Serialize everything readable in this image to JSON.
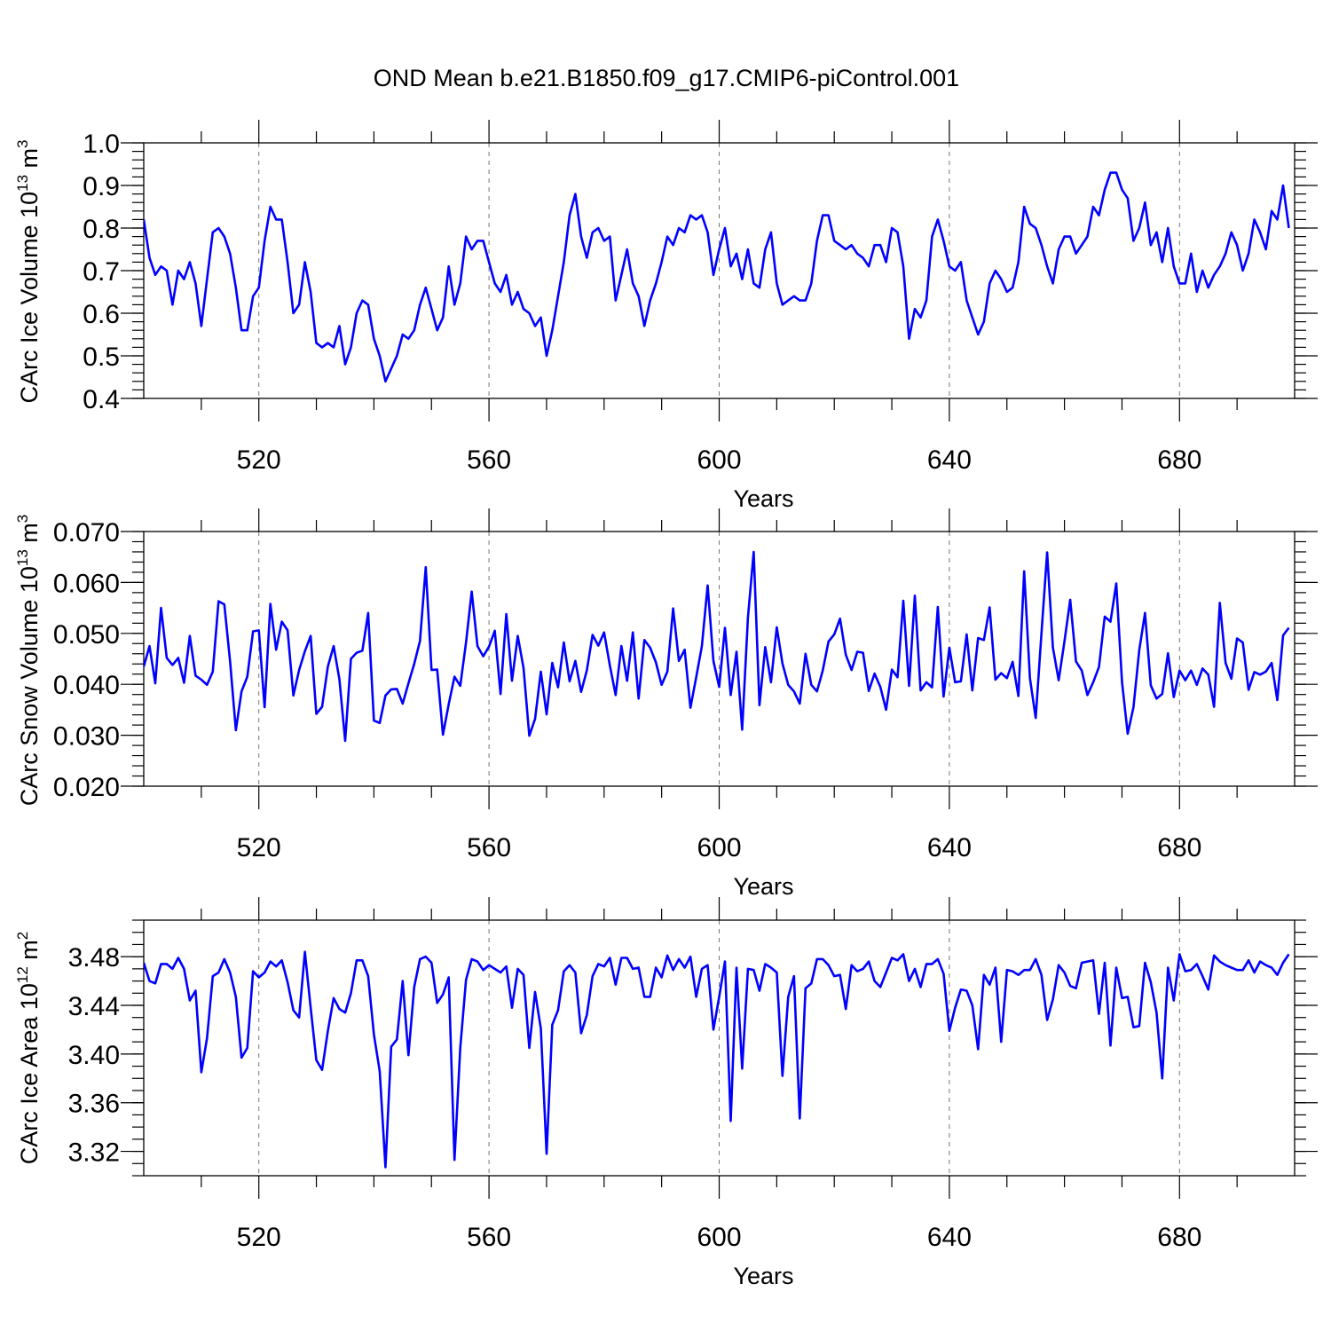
{
  "title": "OND Mean b.e21.B1850.f09_g17.CMIP6-piControl.001",
  "colors": {
    "series": "#0000ff",
    "grid": "#777777",
    "axis": "#000000"
  },
  "chart_data": [
    {
      "type": "line",
      "xlabel": "Years",
      "ylabel": {
        "main": "CArc Ice Volume 10",
        "exp": "13",
        "unit": " m",
        "unit_exp": "3"
      },
      "xlim": [
        500,
        700
      ],
      "ylim": [
        0.4,
        1.0
      ],
      "x_ticks": [
        520,
        560,
        600,
        640,
        680
      ],
      "x_tick_labels": [
        "520",
        "560",
        "600",
        "640",
        "680"
      ],
      "y_ticks": [
        0.4,
        0.5,
        0.6,
        0.7,
        0.8,
        0.9,
        1.0
      ],
      "y_tick_labels": [
        "0.4",
        "0.5",
        "0.6",
        "0.7",
        "0.8",
        "0.9",
        "1.0"
      ],
      "y_minor_step": 0.02,
      "grid": "vertical dashed at major x ticks",
      "x_start": 500,
      "x_step": 1,
      "values": [
        0.82,
        0.73,
        0.69,
        0.71,
        0.7,
        0.62,
        0.7,
        0.68,
        0.72,
        0.67,
        0.57,
        0.68,
        0.79,
        0.8,
        0.78,
        0.74,
        0.66,
        0.56,
        0.56,
        0.64,
        0.66,
        0.77,
        0.85,
        0.82,
        0.82,
        0.72,
        0.6,
        0.62,
        0.72,
        0.65,
        0.53,
        0.52,
        0.53,
        0.52,
        0.57,
        0.48,
        0.52,
        0.6,
        0.63,
        0.62,
        0.54,
        0.5,
        0.44,
        0.47,
        0.5,
        0.55,
        0.54,
        0.56,
        0.62,
        0.66,
        0.61,
        0.56,
        0.59,
        0.71,
        0.62,
        0.67,
        0.78,
        0.75,
        0.77,
        0.77,
        0.72,
        0.67,
        0.65,
        0.69,
        0.62,
        0.65,
        0.61,
        0.6,
        0.57,
        0.59,
        0.5,
        0.56,
        0.64,
        0.72,
        0.83,
        0.88,
        0.78,
        0.73,
        0.79,
        0.8,
        0.77,
        0.78,
        0.63,
        0.69,
        0.75,
        0.67,
        0.64,
        0.57,
        0.63,
        0.67,
        0.72,
        0.78,
        0.76,
        0.8,
        0.79,
        0.83,
        0.82,
        0.83,
        0.79,
        0.69,
        0.75,
        0.8,
        0.71,
        0.74,
        0.68,
        0.75,
        0.67,
        0.66,
        0.75,
        0.79,
        0.67,
        0.62,
        0.63,
        0.64,
        0.63,
        0.63,
        0.67,
        0.77,
        0.83,
        0.83,
        0.77,
        0.76,
        0.75,
        0.76,
        0.74,
        0.73,
        0.71,
        0.76,
        0.76,
        0.72,
        0.8,
        0.79,
        0.71,
        0.54,
        0.61,
        0.59,
        0.63,
        0.78,
        0.82,
        0.77,
        0.71,
        0.7,
        0.72,
        0.63,
        0.59,
        0.55,
        0.58,
        0.67,
        0.7,
        0.68,
        0.65,
        0.66,
        0.72,
        0.85,
        0.81,
        0.8,
        0.76,
        0.71,
        0.67,
        0.75,
        0.78,
        0.78,
        0.74,
        0.76,
        0.78,
        0.85,
        0.83,
        0.89,
        0.93,
        0.93,
        0.89,
        0.87,
        0.77,
        0.8,
        0.86,
        0.76,
        0.79,
        0.72,
        0.8,
        0.71,
        0.67,
        0.67,
        0.74,
        0.65,
        0.7,
        0.66,
        0.69,
        0.71,
        0.74,
        0.79,
        0.76,
        0.7,
        0.74,
        0.82,
        0.79,
        0.75,
        0.84,
        0.82,
        0.9,
        0.8
      ]
    },
    {
      "type": "line",
      "xlabel": "Years",
      "ylabel": {
        "main": "CArc Snow Volume 10",
        "exp": "13",
        "unit": " m",
        "unit_exp": "3"
      },
      "xlim": [
        500,
        700
      ],
      "ylim": [
        0.02,
        0.07
      ],
      "x_ticks": [
        520,
        560,
        600,
        640,
        680
      ],
      "x_tick_labels": [
        "520",
        "560",
        "600",
        "640",
        "680"
      ],
      "y_ticks": [
        0.02,
        0.03,
        0.04,
        0.05,
        0.06,
        0.07
      ],
      "y_tick_labels": [
        "0.020",
        "0.030",
        "0.040",
        "0.050",
        "0.060",
        "0.070"
      ],
      "y_minor_step": 0.002,
      "grid": "vertical dashed at major x ticks",
      "x_start": 500,
      "x_step": 1,
      "values": [
        0.0435,
        0.0475,
        0.0402,
        0.055,
        0.0452,
        0.0438,
        0.0452,
        0.0403,
        0.0495,
        0.0417,
        0.0409,
        0.0399,
        0.0425,
        0.0563,
        0.0557,
        0.0445,
        0.031,
        0.0386,
        0.0415,
        0.0504,
        0.0506,
        0.0355,
        0.0558,
        0.0468,
        0.0523,
        0.0506,
        0.0378,
        0.0428,
        0.0465,
        0.0495,
        0.0342,
        0.0356,
        0.0435,
        0.0475,
        0.041,
        0.0289,
        0.045,
        0.0462,
        0.0466,
        0.054,
        0.0329,
        0.0324,
        0.0378,
        0.039,
        0.0391,
        0.0362,
        0.0402,
        0.044,
        0.0485,
        0.063,
        0.0428,
        0.0429,
        0.0301,
        0.0361,
        0.0415,
        0.0397,
        0.0482,
        0.0582,
        0.0475,
        0.0455,
        0.0474,
        0.0505,
        0.0381,
        0.0538,
        0.0407,
        0.0495,
        0.0432,
        0.0299,
        0.0332,
        0.0425,
        0.0341,
        0.0442,
        0.0394,
        0.0482,
        0.0406,
        0.0446,
        0.0385,
        0.0427,
        0.0497,
        0.0476,
        0.0502,
        0.0437,
        0.0379,
        0.0475,
        0.0407,
        0.0502,
        0.0372,
        0.0487,
        0.0472,
        0.0443,
        0.0399,
        0.0425,
        0.0549,
        0.0446,
        0.0468,
        0.0354,
        0.0414,
        0.0475,
        0.0594,
        0.0446,
        0.0395,
        0.0511,
        0.0379,
        0.0464,
        0.0311,
        0.0531,
        0.066,
        0.0359,
        0.0473,
        0.0404,
        0.0512,
        0.0441,
        0.0399,
        0.0386,
        0.0362,
        0.046,
        0.0399,
        0.0386,
        0.0427,
        0.0484,
        0.0498,
        0.0529,
        0.0458,
        0.0428,
        0.0464,
        0.0462,
        0.0387,
        0.0421,
        0.0395,
        0.035,
        0.0429,
        0.0414,
        0.0564,
        0.0397,
        0.0574,
        0.0388,
        0.0404,
        0.0394,
        0.0552,
        0.0376,
        0.0472,
        0.0404,
        0.0406,
        0.0498,
        0.0388,
        0.0491,
        0.0487,
        0.0551,
        0.0409,
        0.0422,
        0.0412,
        0.0444,
        0.0377,
        0.0622,
        0.0412,
        0.0334,
        0.05,
        0.0659,
        0.0472,
        0.0408,
        0.0484,
        0.0566,
        0.0445,
        0.0427,
        0.0379,
        0.0404,
        0.0434,
        0.0533,
        0.0523,
        0.0598,
        0.0404,
        0.0303,
        0.0355,
        0.0467,
        0.054,
        0.0398,
        0.0372,
        0.0381,
        0.0461,
        0.0375,
        0.0427,
        0.0408,
        0.0427,
        0.0399,
        0.0431,
        0.0419,
        0.0356,
        0.056,
        0.0442,
        0.0411,
        0.049,
        0.0482,
        0.0389,
        0.0424,
        0.0419,
        0.0425,
        0.0442,
        0.0369,
        0.0496,
        0.0511
      ]
    },
    {
      "type": "line",
      "xlabel": "Years",
      "ylabel": {
        "main": "CArc Ice Area 10",
        "exp": "12",
        "unit": " m",
        "unit_exp": "2"
      },
      "xlim": [
        500,
        700
      ],
      "ylim": [
        3.3,
        3.51
      ],
      "x_ticks": [
        520,
        560,
        600,
        640,
        680
      ],
      "x_tick_labels": [
        "520",
        "560",
        "600",
        "640",
        "680"
      ],
      "y_ticks": [
        3.32,
        3.36,
        3.4,
        3.44,
        3.48
      ],
      "y_tick_labels": [
        "3.32",
        "3.36",
        "3.40",
        "3.44",
        "3.48"
      ],
      "y_minor_step": 0.01,
      "grid": "vertical dashed at major x ticks",
      "x_start": 500,
      "x_step": 1,
      "values": [
        3.475,
        3.46,
        3.458,
        3.474,
        3.474,
        3.47,
        3.479,
        3.47,
        3.444,
        3.452,
        3.385,
        3.413,
        3.464,
        3.467,
        3.478,
        3.467,
        3.447,
        3.397,
        3.405,
        3.468,
        3.463,
        3.467,
        3.476,
        3.472,
        3.477,
        3.459,
        3.436,
        3.43,
        3.484,
        3.438,
        3.395,
        3.387,
        3.419,
        3.446,
        3.437,
        3.434,
        3.45,
        3.477,
        3.477,
        3.464,
        3.416,
        3.386,
        3.307,
        3.406,
        3.412,
        3.46,
        3.399,
        3.455,
        3.478,
        3.48,
        3.475,
        3.442,
        3.449,
        3.463,
        3.313,
        3.405,
        3.461,
        3.478,
        3.476,
        3.469,
        3.473,
        3.47,
        3.467,
        3.472,
        3.438,
        3.47,
        3.465,
        3.405,
        3.451,
        3.421,
        3.318,
        3.424,
        3.436,
        3.468,
        3.473,
        3.467,
        3.417,
        3.432,
        3.464,
        3.474,
        3.472,
        3.479,
        3.457,
        3.479,
        3.479,
        3.47,
        3.471,
        3.447,
        3.447,
        3.471,
        3.463,
        3.481,
        3.469,
        3.478,
        3.471,
        3.48,
        3.447,
        3.47,
        3.473,
        3.42,
        3.447,
        3.476,
        3.345,
        3.471,
        3.388,
        3.47,
        3.469,
        3.452,
        3.474,
        3.471,
        3.467,
        3.382,
        3.447,
        3.464,
        3.347,
        3.454,
        3.458,
        3.478,
        3.478,
        3.473,
        3.464,
        3.465,
        3.437,
        3.473,
        3.468,
        3.47,
        3.476,
        3.46,
        3.455,
        3.467,
        3.479,
        3.477,
        3.482,
        3.46,
        3.47,
        3.455,
        3.474,
        3.474,
        3.478,
        3.466,
        3.419,
        3.438,
        3.453,
        3.452,
        3.44,
        3.404,
        3.465,
        3.457,
        3.471,
        3.41,
        3.469,
        3.468,
        3.465,
        3.469,
        3.469,
        3.478,
        3.465,
        3.428,
        3.445,
        3.473,
        3.467,
        3.456,
        3.454,
        3.475,
        3.476,
        3.477,
        3.433,
        3.475,
        3.407,
        3.471,
        3.446,
        3.447,
        3.422,
        3.423,
        3.475,
        3.459,
        3.434,
        3.38,
        3.471,
        3.444,
        3.482,
        3.468,
        3.469,
        3.474,
        3.464,
        3.453,
        3.481,
        3.476,
        3.473,
        3.471,
        3.469,
        3.469,
        3.477,
        3.467,
        3.476,
        3.473,
        3.471,
        3.465,
        3.475,
        3.482
      ]
    }
  ]
}
